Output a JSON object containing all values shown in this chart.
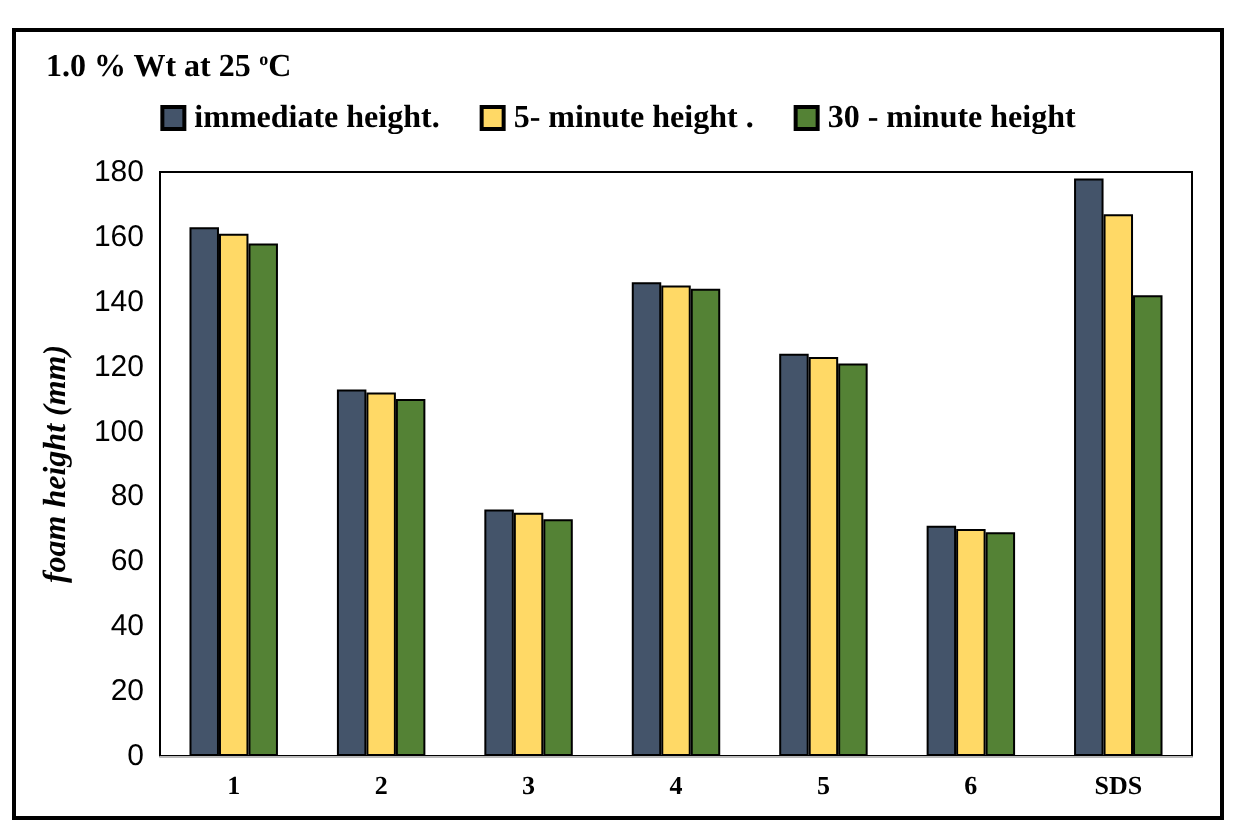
{
  "chart_data": {
    "type": "bar",
    "title": "1.0 % Wt at 25 $^{o}$C",
    "ylabel": "foam height (mm)",
    "categories": [
      "1",
      "2",
      "3",
      "4",
      "5",
      "6",
      "SDS"
    ],
    "series": [
      {
        "name": "immediate height.",
        "color": "#44546a",
        "values": [
          163,
          113,
          76,
          146,
          124,
          71,
          178
        ]
      },
      {
        "name": "5- minute height .",
        "color": "#ffd966",
        "values": [
          161,
          112,
          75,
          145,
          123,
          70,
          167
        ]
      },
      {
        "name": "30 - minute height",
        "color": "#548235",
        "values": [
          158,
          110,
          73,
          144,
          121,
          69,
          142
        ]
      }
    ],
    "ylim": [
      0,
      180
    ],
    "yticks": [
      0,
      20,
      40,
      60,
      80,
      100,
      120,
      140,
      160,
      180
    ],
    "grid": false,
    "legend": "top"
  }
}
